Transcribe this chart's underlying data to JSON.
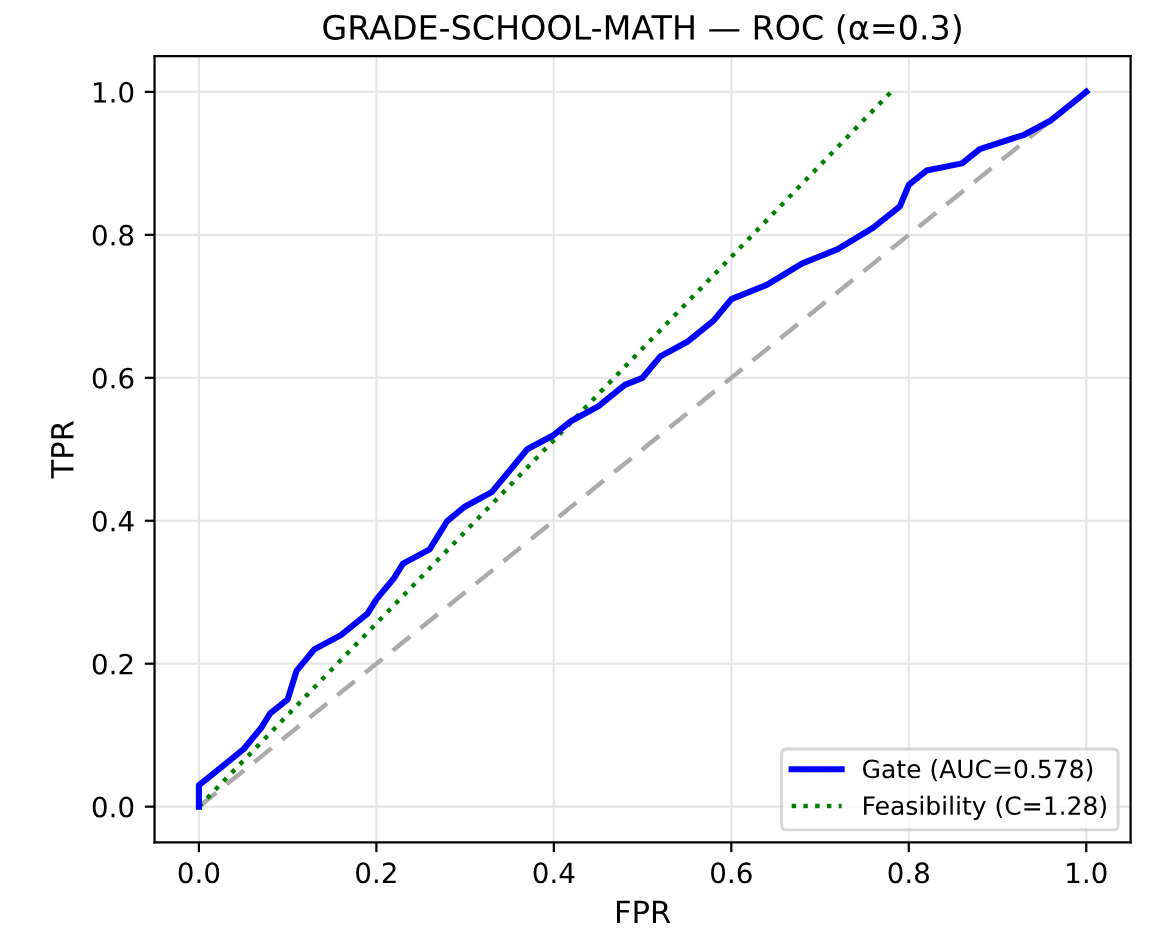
{
  "chart_data": {
    "type": "line",
    "title": "GRADE-SCHOOL-MATH — ROC (α=0.3)",
    "xlabel": "FPR",
    "ylabel": "TPR",
    "xlim": [
      -0.05,
      1.05
    ],
    "ylim": [
      -0.05,
      1.05
    ],
    "xticks": [
      {
        "value": 0,
        "label": "0.0"
      },
      0.2,
      0.4,
      0.6,
      0.8,
      {
        "value": 1,
        "label": "1.0"
      }
    ],
    "yticks": [
      {
        "value": 0,
        "label": "0.0"
      },
      0.2,
      0.4,
      0.6,
      0.8,
      {
        "value": 1,
        "label": "1.0"
      }
    ],
    "grid": true,
    "legend": "bottom right",
    "series": [
      {
        "name": "Gate (AUC=0.578)",
        "color": "#0000ff",
        "line_style": "solid",
        "x": [
          0,
          0,
          0.01,
          0.03,
          0.05,
          0.07,
          0.08,
          0.1,
          0.11,
          0.13,
          0.16,
          0.19,
          0.2,
          0.22,
          0.23,
          0.26,
          0.28,
          0.3,
          0.33,
          0.35,
          0.37,
          0.4,
          0.42,
          0.45,
          0.48,
          0.5,
          0.52,
          0.55,
          0.58,
          0.6,
          0.64,
          0.68,
          0.72,
          0.76,
          0.79,
          0.8,
          0.82,
          0.86,
          0.88,
          0.93,
          0.96,
          0.99,
          1
        ],
        "values": [
          0,
          0.03,
          0.04,
          0.06,
          0.08,
          0.11,
          0.13,
          0.15,
          0.19,
          0.22,
          0.24,
          0.27,
          0.29,
          0.32,
          0.34,
          0.36,
          0.4,
          0.42,
          0.44,
          0.47,
          0.5,
          0.52,
          0.54,
          0.56,
          0.59,
          0.6,
          0.63,
          0.65,
          0.68,
          0.71,
          0.73,
          0.76,
          0.78,
          0.81,
          0.84,
          0.87,
          0.89,
          0.9,
          0.92,
          0.94,
          0.96,
          0.99,
          1
        ]
      },
      {
        "name": "Feasibility (C=1.28)",
        "color": "#008000",
        "line_style": "dotted",
        "x": [
          0,
          0.78
        ],
        "values": [
          0,
          1.0
        ]
      },
      {
        "color": "#aaaaaa",
        "line_style": "dashed",
        "x": [
          0,
          1
        ],
        "values": [
          0,
          1
        ]
      }
    ]
  }
}
